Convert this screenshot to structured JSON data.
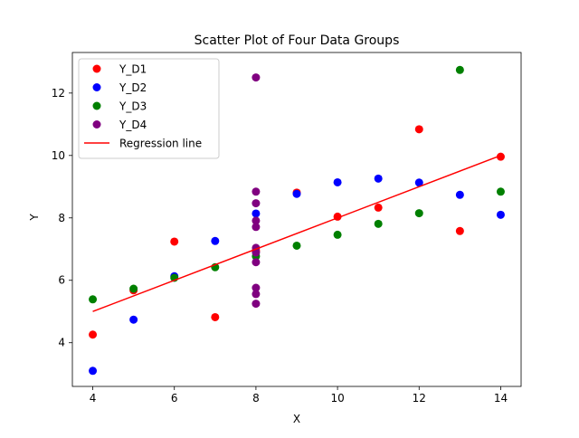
{
  "chart_data": {
    "type": "scatter",
    "title": "Scatter Plot of Four Data Groups",
    "xlabel": "X",
    "ylabel": "Y",
    "xlim": [
      3.5,
      14.5
    ],
    "ylim": [
      2.6,
      13.3
    ],
    "xticks": [
      4,
      6,
      8,
      10,
      12,
      14
    ],
    "yticks": [
      4,
      6,
      8,
      10,
      12
    ],
    "grid": false,
    "legend_position": "top-left",
    "series": [
      {
        "name": "Y_D1",
        "color": "#ff0000",
        "points": [
          {
            "x": 10,
            "y": 8.04
          },
          {
            "x": 8,
            "y": 6.95
          },
          {
            "x": 13,
            "y": 7.58
          },
          {
            "x": 9,
            "y": 8.81
          },
          {
            "x": 11,
            "y": 8.33
          },
          {
            "x": 14,
            "y": 9.96
          },
          {
            "x": 6,
            "y": 7.24
          },
          {
            "x": 4,
            "y": 4.26
          },
          {
            "x": 12,
            "y": 10.84
          },
          {
            "x": 7,
            "y": 4.82
          },
          {
            "x": 5,
            "y": 5.68
          }
        ]
      },
      {
        "name": "Y_D2",
        "color": "#0000ff",
        "points": [
          {
            "x": 10,
            "y": 9.14
          },
          {
            "x": 8,
            "y": 8.14
          },
          {
            "x": 13,
            "y": 8.74
          },
          {
            "x": 9,
            "y": 8.77
          },
          {
            "x": 11,
            "y": 9.26
          },
          {
            "x": 14,
            "y": 8.1
          },
          {
            "x": 6,
            "y": 6.13
          },
          {
            "x": 4,
            "y": 3.1
          },
          {
            "x": 12,
            "y": 9.13
          },
          {
            "x": 7,
            "y": 7.26
          },
          {
            "x": 5,
            "y": 4.74
          }
        ]
      },
      {
        "name": "Y_D3",
        "color": "#008000",
        "points": [
          {
            "x": 10,
            "y": 7.46
          },
          {
            "x": 8,
            "y": 6.77
          },
          {
            "x": 13,
            "y": 12.74
          },
          {
            "x": 9,
            "y": 7.11
          },
          {
            "x": 11,
            "y": 7.81
          },
          {
            "x": 14,
            "y": 8.84
          },
          {
            "x": 6,
            "y": 6.08
          },
          {
            "x": 4,
            "y": 5.39
          },
          {
            "x": 12,
            "y": 8.15
          },
          {
            "x": 7,
            "y": 6.42
          },
          {
            "x": 5,
            "y": 5.73
          }
        ]
      },
      {
        "name": "Y_D4",
        "color": "#800080",
        "points": [
          {
            "x": 8,
            "y": 6.58
          },
          {
            "x": 8,
            "y": 5.76
          },
          {
            "x": 8,
            "y": 7.71
          },
          {
            "x": 8,
            "y": 8.84
          },
          {
            "x": 8,
            "y": 8.47
          },
          {
            "x": 8,
            "y": 7.04
          },
          {
            "x": 8,
            "y": 5.25
          },
          {
            "x": 8,
            "y": 12.5
          },
          {
            "x": 8,
            "y": 5.56
          },
          {
            "x": 8,
            "y": 7.91
          },
          {
            "x": 8,
            "y": 6.89
          }
        ]
      }
    ],
    "regression_line": {
      "name": "Regression line",
      "color": "#ff0000",
      "points": [
        {
          "x": 4,
          "y": 5.0
        },
        {
          "x": 14,
          "y": 10.0
        }
      ]
    }
  }
}
